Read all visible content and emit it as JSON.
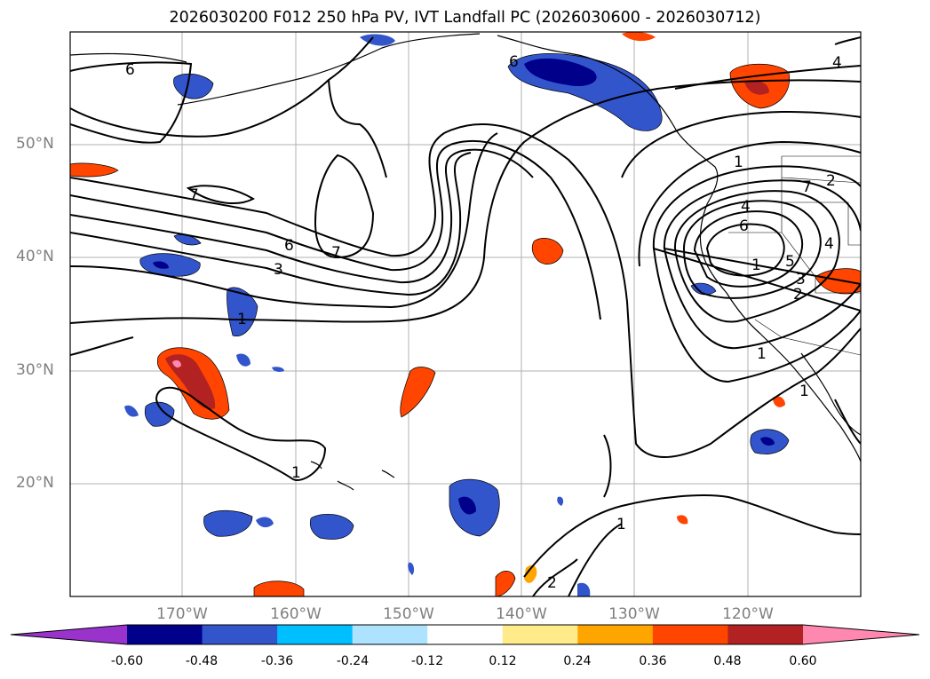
{
  "title": "2026030200 F012 250 hPa PV, IVT Landfall PC (2026030600 - 2026030712)",
  "lat_labels": [
    "50°N",
    "40°N",
    "30°N",
    "20°N"
  ],
  "lon_labels": [
    "170°W",
    "160°W",
    "150°W",
    "140°W",
    "130°W",
    "120°W"
  ],
  "contour_labels": [
    "6",
    "7",
    "6",
    "7",
    "3",
    "1",
    "1",
    "6",
    "4",
    "7",
    "2",
    "1",
    "4",
    "6",
    "5",
    "1",
    "3",
    "2",
    "4",
    "1",
    "1",
    "1",
    "2"
  ],
  "colorbar": {
    "levels": [
      "-0.60",
      "-0.48",
      "-0.36",
      "-0.24",
      "-0.12",
      "0.12",
      "0.24",
      "0.36",
      "0.48",
      "0.60"
    ],
    "colors": [
      "#9933cc",
      "#00008b",
      "#3355cc",
      "#00bfff",
      "#aee3ff",
      "#ffffff",
      "#ffeb8a",
      "#ffa500",
      "#ff4500",
      "#b22222",
      "#ff88b0"
    ]
  }
}
